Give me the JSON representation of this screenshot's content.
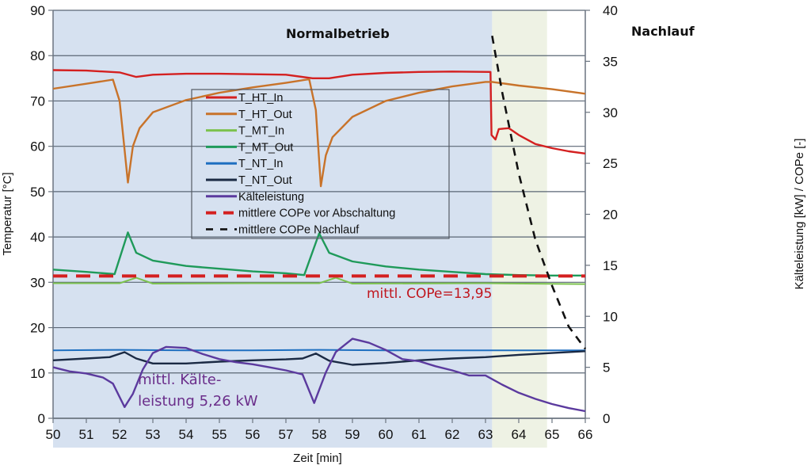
{
  "chart_data": {
    "type": "line",
    "title": "",
    "xlabel": "Zeit [min]",
    "ylabel": "Temperatur [°C]",
    "y2label": "Kälteleistung [kW] / COPe [-]",
    "xlim": [
      50,
      66
    ],
    "ylim": [
      0,
      90
    ],
    "y2lim": [
      0,
      40
    ],
    "xticks": [
      "50",
      "51",
      "52",
      "53",
      "54",
      "55",
      "56",
      "57",
      "58",
      "59",
      "60",
      "61",
      "62",
      "63",
      "64",
      "65",
      "66"
    ],
    "yticks": [
      "0",
      "10",
      "20",
      "30",
      "40",
      "50",
      "60",
      "70",
      "80",
      "90"
    ],
    "y2ticks": [
      "0",
      "5",
      "10",
      "15",
      "20",
      "25",
      "30",
      "35",
      "40"
    ],
    "grid": true,
    "legend_position": "center-left",
    "regions": [
      {
        "name": "Normalbetrieb",
        "x": [
          50,
          63.2
        ],
        "color": "#d6e1f0"
      },
      {
        "name": "Nachlauf",
        "x": [
          63.2,
          64.85
        ],
        "color": "#eef2e4"
      }
    ],
    "series": [
      {
        "name": "T_HT_In",
        "axis": "left",
        "color": "#d42020",
        "style": "solid",
        "x": [
          50,
          51,
          52,
          52.5,
          53,
          54,
          55,
          56,
          57,
          57.8,
          58.3,
          59,
          60,
          61,
          62,
          63.15,
          63.18,
          63.3,
          63.4,
          63.7,
          64,
          64.5,
          65,
          65.5,
          66
        ],
        "y": [
          76.8,
          76.7,
          76.3,
          75.3,
          75.8,
          76.0,
          76.0,
          75.9,
          75.8,
          75.0,
          75.0,
          75.8,
          76.2,
          76.4,
          76.5,
          76.4,
          62.5,
          61.5,
          63.8,
          64.0,
          62.5,
          60.5,
          59.6,
          58.9,
          58.4
        ]
      },
      {
        "name": "T_HT_Out",
        "axis": "left",
        "color": "#c8732a",
        "style": "solid",
        "x": [
          50,
          51,
          51.8,
          52.0,
          52.25,
          52.4,
          52.6,
          53,
          54,
          55,
          56,
          57,
          57.7,
          57.9,
          58.05,
          58.2,
          58.4,
          59,
          60,
          61,
          62,
          63,
          63.2,
          64,
          65,
          66
        ],
        "y": [
          72.7,
          73.8,
          74.7,
          70.0,
          52.0,
          60.0,
          64.0,
          67.5,
          70.2,
          71.8,
          73.0,
          74.0,
          74.8,
          68.0,
          51.2,
          58.0,
          62.0,
          66.5,
          70.0,
          71.8,
          73.2,
          74.2,
          74.2,
          73.4,
          72.6,
          71.6
        ]
      },
      {
        "name": "T_MT_In",
        "axis": "left",
        "color": "#7cc24e",
        "style": "solid",
        "x": [
          50,
          52,
          52.5,
          53,
          56,
          58,
          58.5,
          59,
          63,
          66
        ],
        "y": [
          29.8,
          29.8,
          31.0,
          29.7,
          29.8,
          29.8,
          31.0,
          29.7,
          29.8,
          29.6
        ]
      },
      {
        "name": "T_MT_Out",
        "axis": "left",
        "color": "#1f9a5a",
        "style": "solid",
        "x": [
          50,
          51,
          51.85,
          52.25,
          52.5,
          53,
          54,
          55,
          56,
          57,
          57.55,
          58.0,
          58.3,
          59,
          60,
          61,
          62,
          63,
          64,
          65,
          66
        ],
        "y": [
          32.8,
          32.3,
          31.8,
          41.0,
          36.5,
          34.8,
          33.6,
          33.0,
          32.4,
          32.0,
          31.6,
          40.8,
          36.5,
          34.6,
          33.5,
          32.8,
          32.3,
          31.8,
          31.6,
          31.5,
          31.5
        ]
      },
      {
        "name": "T_NT_In",
        "axis": "left",
        "color": "#1e6fc0",
        "style": "solid",
        "x": [
          50,
          52,
          54,
          56,
          58,
          60,
          62,
          64,
          66
        ],
        "y": [
          15.0,
          15.1,
          15.0,
          15.0,
          15.1,
          15.0,
          15.0,
          15.0,
          15.0
        ]
      },
      {
        "name": "T_NT_Out",
        "axis": "left",
        "color": "#1b2a44",
        "style": "solid",
        "x": [
          50,
          51,
          51.7,
          52.15,
          52.5,
          53,
          54,
          55,
          56,
          57,
          57.5,
          57.9,
          58.3,
          59,
          60,
          61,
          62,
          63,
          64,
          65,
          66
        ],
        "y": [
          12.8,
          13.2,
          13.5,
          14.6,
          13.2,
          12.1,
          12.1,
          12.5,
          12.8,
          13.0,
          13.2,
          14.3,
          12.7,
          11.8,
          12.2,
          12.8,
          13.2,
          13.5,
          14.0,
          14.4,
          14.8
        ]
      },
      {
        "name": "Kälteleistung",
        "axis": "right",
        "color": "#5b3a9e",
        "style": "solid",
        "x": [
          50,
          50.5,
          51,
          51.5,
          51.8,
          52.15,
          52.4,
          52.7,
          53,
          53.4,
          54,
          54.5,
          55,
          55.5,
          56,
          56.5,
          57,
          57.5,
          57.85,
          58.2,
          58.5,
          59,
          59.5,
          60,
          60.5,
          61,
          61.5,
          62,
          62.5,
          63,
          63.5,
          64,
          64.5,
          65,
          65.5,
          66
        ],
        "y": [
          5.0,
          4.6,
          4.4,
          4.0,
          3.4,
          1.1,
          2.4,
          4.8,
          6.4,
          7.0,
          6.9,
          6.3,
          5.8,
          5.5,
          5.3,
          5.0,
          4.7,
          4.3,
          1.5,
          4.5,
          6.5,
          7.8,
          7.4,
          6.7,
          5.8,
          5.6,
          5.1,
          4.7,
          4.2,
          4.2,
          3.3,
          2.5,
          1.9,
          1.4,
          1.0,
          0.7
        ]
      },
      {
        "name": "mittlere COPe vor Abschaltung",
        "axis": "right",
        "color": "#d42020",
        "style": "dashed",
        "x": [
          50,
          66
        ],
        "y": [
          13.95,
          13.95
        ]
      },
      {
        "name": "mittlere COPe Nachlauf",
        "axis": "right",
        "color": "#111111",
        "style": "dashed",
        "x": [
          63.2,
          63.5,
          64,
          64.5,
          65,
          65.5,
          66
        ],
        "y": [
          37.5,
          32.0,
          24.0,
          17.5,
          13.0,
          9.0,
          6.8
        ]
      }
    ],
    "annotations": [
      {
        "text": "Normalbetrieb",
        "x": 56.6,
        "y2": 37.8,
        "color": "#111111"
      },
      {
        "text": "Nachlauf",
        "x": 64.1,
        "y2": 38.0,
        "color": "#111111"
      },
      {
        "text": "mittl. COPe=13,95",
        "x": 58.5,
        "y2": 11.8,
        "color": "#c0161e"
      },
      {
        "text_lines": [
          "mittl. Kälte-",
          "leistung 5,26 kW"
        ],
        "x": 52.55,
        "y": 7.5,
        "color": "#6a2d8a"
      }
    ]
  }
}
